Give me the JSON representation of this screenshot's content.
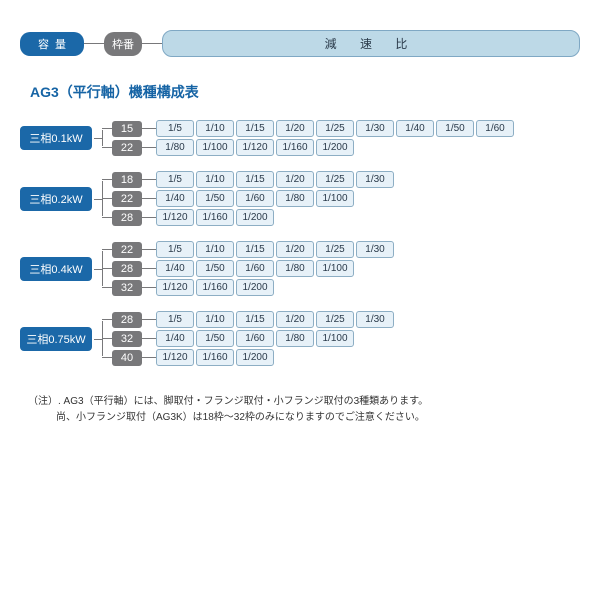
{
  "legend": {
    "capacity": "容量",
    "frame": "枠番",
    "ratio": "減 速 比"
  },
  "title": "AG3（平行軸）機種構成表",
  "colors": {
    "blue": "#1b68a8",
    "gray": "#78787a",
    "ratio_bg": "#e7f1f8",
    "ratio_border": "#8daec4",
    "legend_ratio_bg": "#bdd9e7",
    "title_color": "#1664a5"
  },
  "groups": [
    {
      "capacity": "三相0.1kW",
      "frames": [
        {
          "num": "15",
          "ratios": [
            "1/5",
            "1/10",
            "1/15",
            "1/20",
            "1/25",
            "1/30",
            "1/40",
            "1/50",
            "1/60"
          ]
        },
        {
          "num": "22",
          "ratios": [
            "1/80",
            "1/100",
            "1/120",
            "1/160",
            "1/200"
          ]
        }
      ]
    },
    {
      "capacity": "三相0.2kW",
      "frames": [
        {
          "num": "18",
          "ratios": [
            "1/5",
            "1/10",
            "1/15",
            "1/20",
            "1/25",
            "1/30"
          ]
        },
        {
          "num": "22",
          "ratios": [
            "1/40",
            "1/50",
            "1/60",
            "1/80",
            "1/100"
          ]
        },
        {
          "num": "28",
          "ratios": [
            "1/120",
            "1/160",
            "1/200"
          ]
        }
      ]
    },
    {
      "capacity": "三相0.4kW",
      "frames": [
        {
          "num": "22",
          "ratios": [
            "1/5",
            "1/10",
            "1/15",
            "1/20",
            "1/25",
            "1/30"
          ]
        },
        {
          "num": "28",
          "ratios": [
            "1/40",
            "1/50",
            "1/60",
            "1/80",
            "1/100"
          ]
        },
        {
          "num": "32",
          "ratios": [
            "1/120",
            "1/160",
            "1/200"
          ]
        }
      ]
    },
    {
      "capacity": "三相0.75kW",
      "frames": [
        {
          "num": "28",
          "ratios": [
            "1/5",
            "1/10",
            "1/15",
            "1/20",
            "1/25",
            "1/30"
          ]
        },
        {
          "num": "32",
          "ratios": [
            "1/40",
            "1/50",
            "1/60",
            "1/80",
            "1/100"
          ]
        },
        {
          "num": "40",
          "ratios": [
            "1/120",
            "1/160",
            "1/200"
          ]
        }
      ]
    }
  ],
  "notes": {
    "line1": "（注）. AG3（平行軸）には、脚取付・フランジ取付・小フランジ取付の3種類あります。",
    "line2": "尚、小フランジ取付（AG3K）は18枠～32枠のみになりますのでご注意ください。"
  }
}
